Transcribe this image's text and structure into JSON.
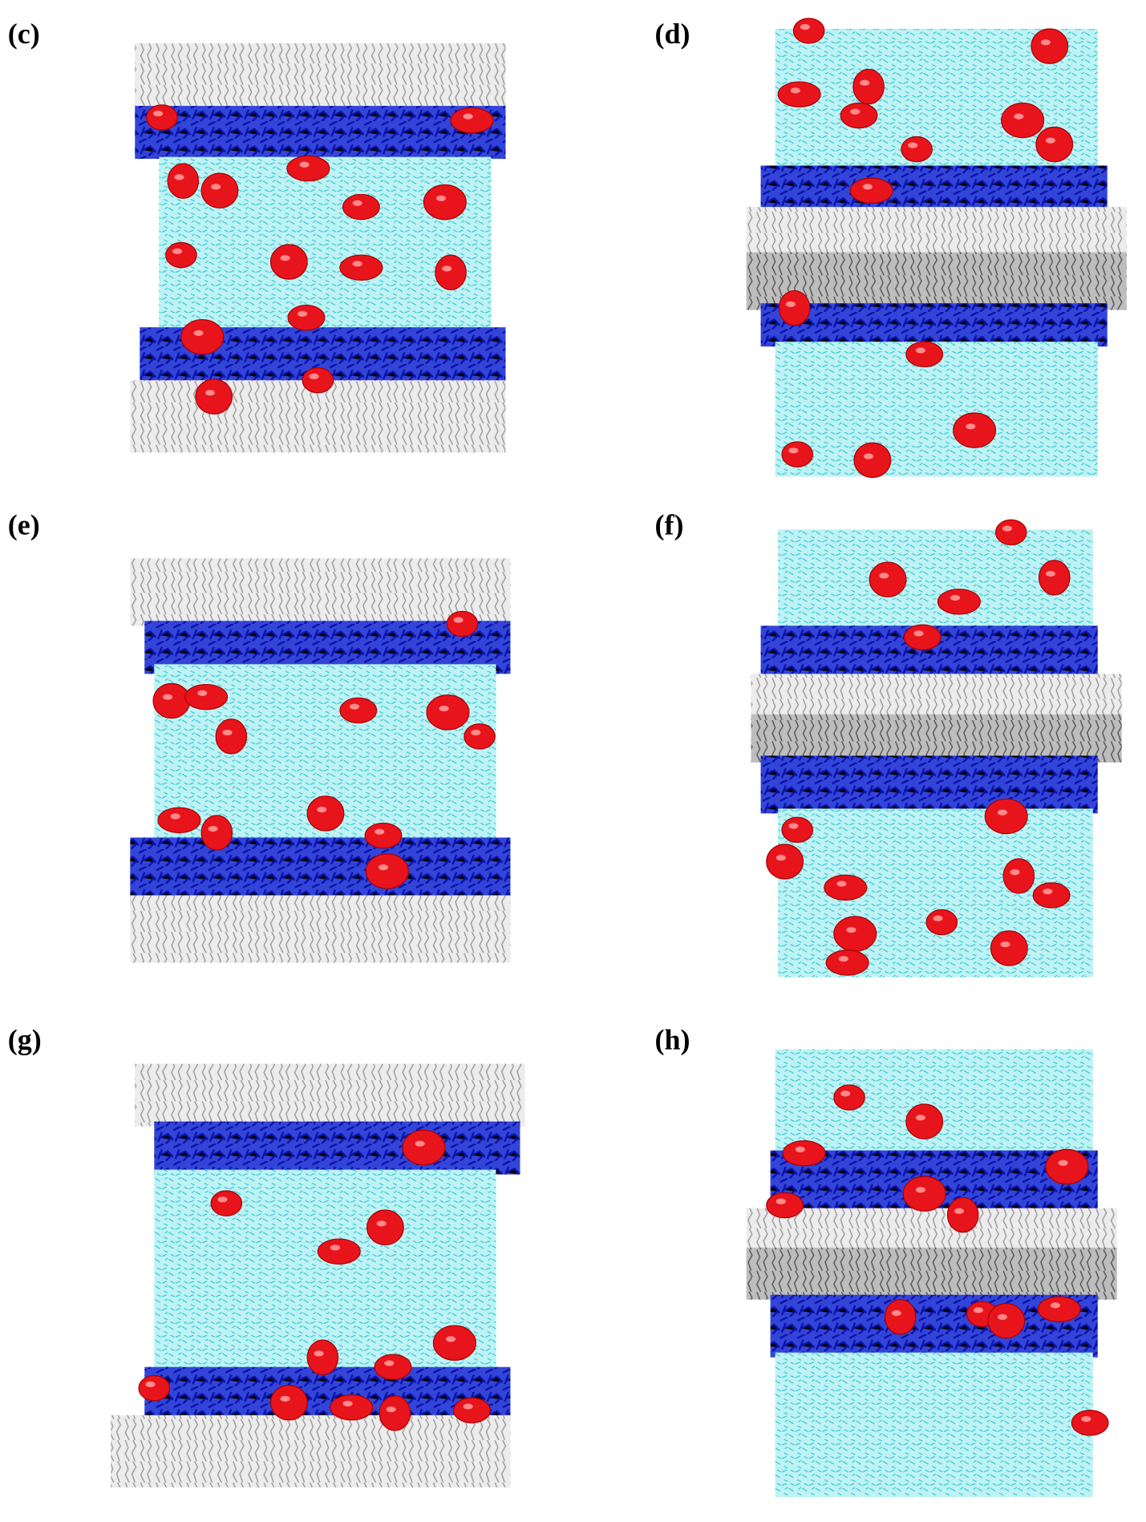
{
  "panels": [
    {
      "label": "(c)"
    },
    {
      "label": "(d)"
    },
    {
      "label": "(e)"
    },
    {
      "label": "(f)"
    },
    {
      "label": "(g)"
    },
    {
      "label": "(h)"
    }
  ]
}
